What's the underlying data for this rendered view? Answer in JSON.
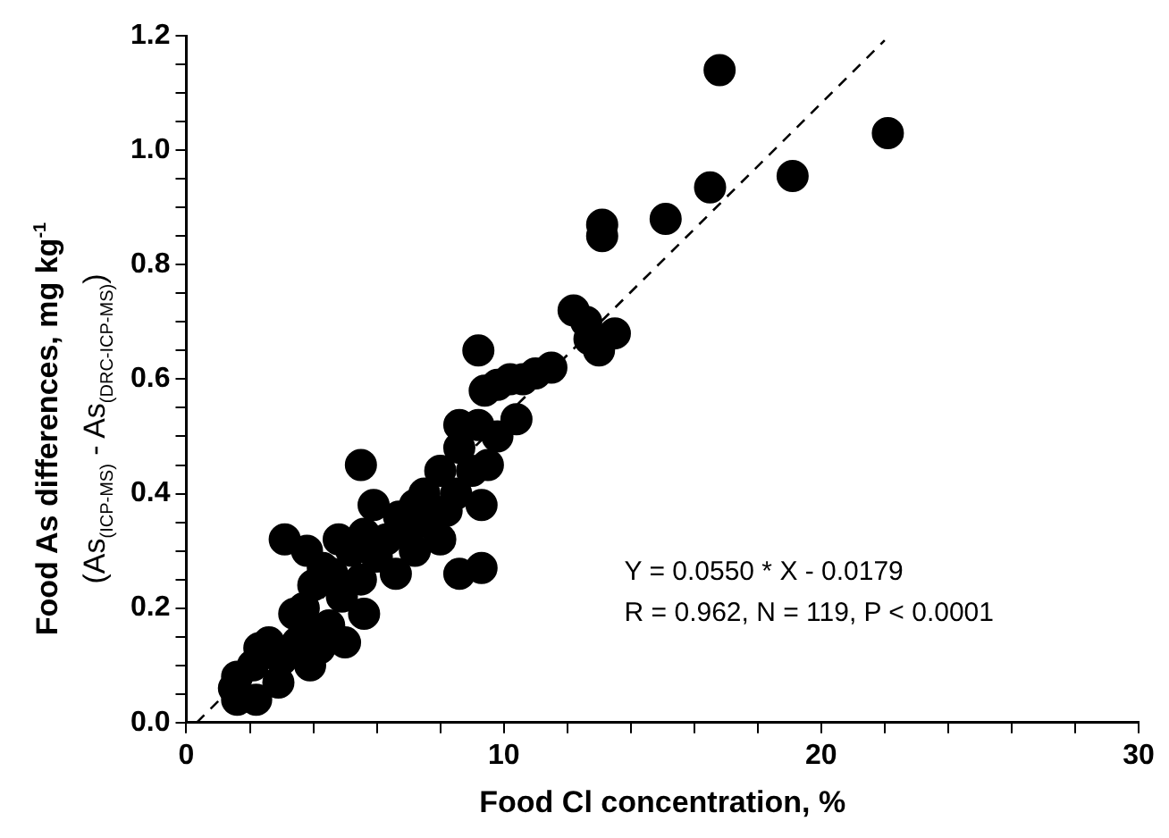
{
  "chart_data": {
    "type": "scatter",
    "xlabel": "Food Cl concentration, %",
    "ylabel": "Food As differences, mg kg$^{-1}$\n(As$_{(ICP-MS)}$ - As$_{(DRC-ICP-MS)}$)",
    "xlim": [
      0,
      30
    ],
    "ylim": [
      0,
      1.2
    ],
    "xticks": [
      0,
      {
        "value": 2,
        "label": null
      },
      {
        "value": 4,
        "label": null
      },
      {
        "value": 6,
        "label": null
      },
      {
        "value": 8,
        "label": null
      },
      10,
      {
        "value": 12,
        "label": null
      },
      {
        "value": 14,
        "label": null
      },
      {
        "value": 16,
        "label": null
      },
      {
        "value": 18,
        "label": null
      },
      20,
      {
        "value": 22,
        "label": null
      },
      {
        "value": 24,
        "label": null
      },
      {
        "value": 26,
        "label": null
      },
      {
        "value": 28,
        "label": null
      },
      30
    ],
    "yticks": [
      {
        "value": 0,
        "label": "0.0"
      },
      {
        "value": 0.05,
        "label": null
      },
      {
        "value": 0.1,
        "label": null
      },
      {
        "value": 0.15,
        "label": null
      },
      0.2,
      {
        "value": 0.25,
        "label": null
      },
      {
        "value": 0.3,
        "label": null
      },
      {
        "value": 0.35,
        "label": null
      },
      0.4,
      {
        "value": 0.45,
        "label": null
      },
      {
        "value": 0.5,
        "label": null
      },
      {
        "value": 0.55,
        "label": null
      },
      0.6,
      {
        "value": 0.65,
        "label": null
      },
      {
        "value": 0.7,
        "label": null
      },
      {
        "value": 0.75,
        "label": null
      },
      0.8,
      {
        "value": 0.85,
        "label": null
      },
      {
        "value": 0.9,
        "label": null
      },
      {
        "value": 0.95,
        "label": null
      },
      {
        "value": 1,
        "label": "1.0"
      },
      {
        "value": 1.05,
        "label": null
      },
      {
        "value": 1.1,
        "label": null
      },
      {
        "value": 1.15,
        "label": null
      },
      1.2
    ],
    "grid": false,
    "legend": false,
    "marker": "circle",
    "annotations": [
      "Y = 0.0550 * X - 0.0179",
      "R = 0.962, N = 119, P < 0.0001"
    ],
    "series": [
      {
        "color": "#000000",
        "x": [
          16.8,
          22.1,
          19.1,
          16.5,
          15.1,
          13.1,
          13.1,
          12.2,
          12.6,
          13.5,
          13,
          12.7,
          11.5,
          11,
          10.6,
          10.2,
          9.8,
          9.4,
          9.2,
          10.4,
          9.8,
          9.2,
          8.6,
          8.6,
          9.5,
          9,
          8.5,
          9.3,
          8.6,
          9.3,
          8,
          7.5,
          7.2,
          6.7,
          7,
          7.6,
          8.2,
          8,
          7.2,
          6.6,
          5.5,
          5.9,
          5.6,
          5.2,
          4.8,
          6.3,
          6,
          5.5,
          5.6,
          3.1,
          3.8,
          4.3,
          4,
          4.6,
          4.9,
          3.7,
          3.4,
          3.9,
          4.5,
          4.2,
          3.5,
          3.9,
          5,
          2.6,
          2.3,
          2.1,
          3,
          2.9,
          1.6,
          1.5,
          1.6,
          2.2
        ],
        "values": [
          1.14,
          1.03,
          0.955,
          0.935,
          0.88,
          0.87,
          0.85,
          0.72,
          0.7,
          0.68,
          0.65,
          0.67,
          0.62,
          0.61,
          0.6,
          0.6,
          0.59,
          0.58,
          0.65,
          0.53,
          0.5,
          0.52,
          0.52,
          0.48,
          0.45,
          0.44,
          0.4,
          0.38,
          0.26,
          0.27,
          0.44,
          0.4,
          0.38,
          0.36,
          0.34,
          0.35,
          0.37,
          0.32,
          0.3,
          0.26,
          0.45,
          0.38,
          0.33,
          0.3,
          0.32,
          0.32,
          0.29,
          0.25,
          0.19,
          0.32,
          0.3,
          0.27,
          0.24,
          0.26,
          0.22,
          0.2,
          0.19,
          0.16,
          0.17,
          0.13,
          0.14,
          0.1,
          0.14,
          0.14,
          0.13,
          0.1,
          0.11,
          0.07,
          0.08,
          0.06,
          0.04,
          0.04
        ]
      },
      {
        "type": "line",
        "color": "#000000",
        "marker": "none",
        "line_style": "dashed",
        "x": [
          0.325,
          22
        ],
        "values": [
          0,
          1.192
        ]
      }
    ]
  }
}
